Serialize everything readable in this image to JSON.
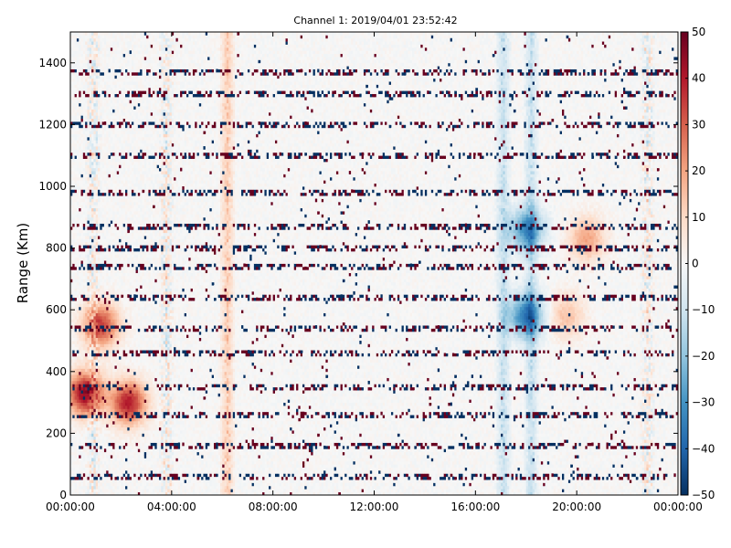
{
  "chart_data": {
    "type": "heatmap",
    "title": "Channel 1: 2019/04/01 23:52:42",
    "xlabel": "",
    "ylabel": "Range (Km)",
    "x_ticks": [
      "00:00:00",
      "04:00:00",
      "08:00:00",
      "12:00:00",
      "16:00:00",
      "20:00:00",
      "00:00:00"
    ],
    "y_ticks": [
      "0",
      "200",
      "400",
      "600",
      "800",
      "1000",
      "1200",
      "1400"
    ],
    "ylim": [
      0,
      1500
    ],
    "colorbar": {
      "colormap": "RdBu_r",
      "min": -50,
      "max": 50,
      "ticks": [
        "50",
        "40",
        "30",
        "20",
        "10",
        "0",
        "−10",
        "−20",
        "−30",
        "−40",
        "−50"
      ]
    },
    "colors": {
      "high": "#67001f",
      "mid": "#f7f7f7",
      "low": "#053061"
    },
    "persistent_bands_km": [
      1370,
      1300,
      1200,
      1100,
      980,
      870,
      800,
      740,
      640,
      540,
      460,
      350,
      260,
      160,
      60
    ],
    "features": [
      {
        "type": "vertical_streak",
        "hour": 6.2,
        "sign": "positive"
      },
      {
        "type": "vertical_streak",
        "hour": 3.8,
        "sign": "mixed"
      },
      {
        "type": "vertical_streak",
        "hour": 0.9,
        "sign": "mixed"
      },
      {
        "type": "vertical_streak",
        "hour": 18.2,
        "sign": "negative"
      },
      {
        "type": "vertical_streak",
        "hour": 17.1,
        "sign": "negative"
      },
      {
        "type": "vertical_streak",
        "hour": 22.8,
        "sign": "mixed"
      },
      {
        "type": "blob",
        "hour": 0.6,
        "range_km": 330,
        "value": 45
      },
      {
        "type": "blob",
        "hour": 1.2,
        "range_km": 550,
        "value": 35
      },
      {
        "type": "blob",
        "hour": 2.3,
        "range_km": 300,
        "value": 40
      },
      {
        "type": "blob",
        "hour": 18.0,
        "range_km": 580,
        "value": -35
      },
      {
        "type": "blob",
        "hour": 18.0,
        "range_km": 860,
        "value": -30
      },
      {
        "type": "blob",
        "hour": 20.4,
        "range_km": 830,
        "value": 20
      },
      {
        "type": "blob",
        "hour": 19.6,
        "range_km": 580,
        "value": 15
      }
    ]
  }
}
